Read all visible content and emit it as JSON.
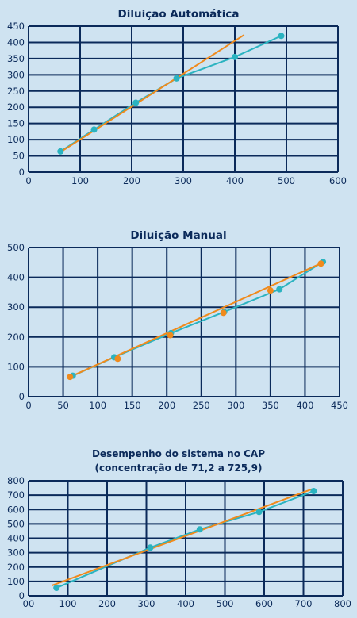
{
  "colors": {
    "background": "#cfe3f1",
    "grid": "#0b2a5a",
    "series_cyan": "#2bb3c0",
    "series_orange": "#f08a1c"
  },
  "chart_data": [
    {
      "type": "scatter",
      "title": "Diluição Automática",
      "subtitle": "",
      "xlim": [
        0,
        600
      ],
      "ylim": [
        0,
        450
      ],
      "xticks": [
        "0",
        "100",
        "200",
        "300",
        "400",
        "500",
        "600"
      ],
      "yticks": [
        "0",
        "50",
        "100",
        "150",
        "200",
        "250",
        "300",
        "350",
        "400",
        "450"
      ],
      "grid": true,
      "series": [
        {
          "color": "#2bb3c0",
          "points": [
            [
              62,
              64
            ],
            [
              127,
              131
            ],
            [
              208,
              214
            ],
            [
              287,
              289
            ],
            [
              400,
              355
            ],
            [
              490,
              420
            ]
          ],
          "line": "connect"
        },
        {
          "color": "#f08a1c",
          "points": [],
          "line": {
            "from": [
              60,
              60
            ],
            "to": [
              418,
              423
            ]
          }
        }
      ]
    },
    {
      "type": "scatter",
      "title": "Diluição Manual",
      "subtitle": "",
      "xlim": [
        0,
        450
      ],
      "ylim": [
        0,
        500
      ],
      "xticks": [
        "0",
        "50",
        "100",
        "150",
        "200",
        "250",
        "300",
        "350",
        "400",
        "450"
      ],
      "yticks": [
        "0",
        "100",
        "200",
        "300",
        "400",
        "500"
      ],
      "grid": true,
      "series": [
        {
          "color": "#2bb3c0",
          "points": [
            [
              64,
              70
            ],
            [
              124,
              132
            ],
            [
              206,
              213
            ],
            [
              283,
              284
            ],
            [
              363,
              360
            ],
            [
              426,
              452
            ]
          ],
          "line": "connect"
        },
        {
          "color": "#f08a1c",
          "points": [
            [
              60,
              66
            ],
            [
              129,
              127
            ],
            [
              205,
              206
            ],
            [
              282,
              281
            ],
            [
              350,
              356
            ],
            [
              423,
              446
            ]
          ],
          "line": {
            "from": [
              58,
              64
            ],
            "to": [
              425,
              449
            ]
          }
        }
      ]
    },
    {
      "type": "scatter",
      "title": "Desempenho do sistema no CAP",
      "subtitle": "(concentração de 71,2 a 725,9)",
      "xlim": [
        0,
        800
      ],
      "ylim": [
        0,
        800
      ],
      "xticks": [
        "00",
        "100",
        "200",
        "300",
        "400",
        "500",
        "600",
        "700",
        "800"
      ],
      "yticks": [
        "0",
        "100",
        "200",
        "300",
        "400",
        "500",
        "600",
        "700",
        "800"
      ],
      "grid": true,
      "series": [
        {
          "color": "#2bb3c0",
          "points": [
            [
              71,
              55
            ],
            [
              310,
              335
            ],
            [
              436,
              462
            ],
            [
              587,
              583
            ],
            [
              726,
              728
            ]
          ],
          "line": "connect"
        },
        {
          "color": "#f08a1c",
          "points": [],
          "line": {
            "from": [
              60,
              72
            ],
            "to": [
              722,
              742
            ]
          }
        }
      ]
    }
  ]
}
